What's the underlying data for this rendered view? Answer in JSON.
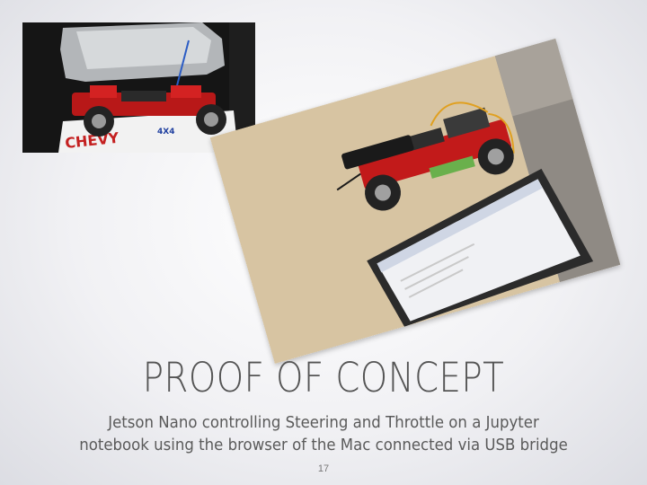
{
  "slide": {
    "title": "PROOF OF CONCEPT",
    "subtitle_lines": [
      "Jetson Nano controlling Steering and Throttle on a Jupyter",
      "notebook using the browser of the Mac connected via USB bridge"
    ],
    "page_number": "17"
  },
  "photos": {
    "box_lettering": "CHEVY",
    "box_lettering_2": "4X4"
  },
  "colors": {
    "title": "#555555",
    "subtitle": "#5a5a5a",
    "chassis_red": "#c21a1a",
    "table_tan": "#d9c6a6"
  }
}
